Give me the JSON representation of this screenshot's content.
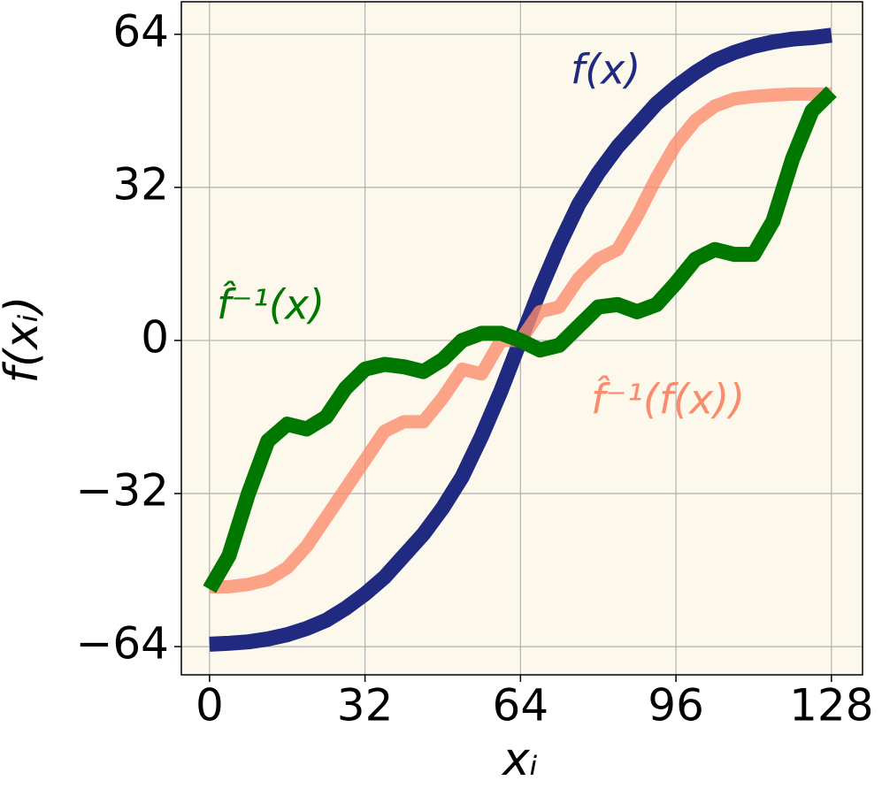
{
  "chart_data": {
    "type": "line",
    "xlabel": "xᵢ",
    "ylabel": "f(xᵢ)",
    "x": [
      0,
      4,
      8,
      12,
      16,
      20,
      24,
      28,
      32,
      36,
      40,
      44,
      48,
      52,
      56,
      60,
      64,
      68,
      72,
      76,
      80,
      84,
      88,
      92,
      96,
      100,
      104,
      108,
      112,
      116,
      120,
      124,
      128
    ],
    "series": [
      {
        "name": "f(x)",
        "color": "#1f2a80",
        "values": [
          -63.5,
          -63.3,
          -63,
          -62.4,
          -61.5,
          -60.2,
          -58.5,
          -56,
          -53,
          -49.5,
          -45,
          -40.5,
          -35,
          -28.5,
          -20,
          -10.5,
          0,
          10.5,
          20,
          28.5,
          35,
          40.5,
          45,
          49.5,
          53,
          56,
          58.5,
          60.2,
          61.5,
          62.4,
          63,
          63.3,
          63.8
        ]
      },
      {
        "name": "f̂⁻¹(f(x))",
        "color": "#fa8c6e",
        "values": [
          -51.5,
          -51.5,
          -51,
          -50,
          -47.5,
          -43,
          -37,
          -31,
          -25,
          -19,
          -17,
          -17,
          -12,
          -6,
          -7,
          0,
          0,
          6,
          7,
          13,
          17,
          19,
          26,
          34,
          41,
          46,
          49,
          50.5,
          51,
          51.3,
          51.5,
          51.5,
          51.5
        ]
      },
      {
        "name": "f̂⁻¹(x)",
        "color": "#007800",
        "values": [
          -52,
          -45,
          -32,
          -21,
          -17.5,
          -18.5,
          -16,
          -10,
          -6,
          -5,
          -5.5,
          -6.5,
          -4,
          0,
          1.5,
          1.5,
          0,
          -2,
          -1,
          3,
          7,
          7.5,
          6,
          7.5,
          12,
          17,
          19,
          18,
          18,
          25,
          38,
          48,
          52
        ]
      }
    ],
    "xlim": [
      -5.8,
      134.4
    ],
    "ylim": [
      -69.9,
      70.8
    ],
    "xticks": [
      0,
      32,
      64,
      96,
      128
    ],
    "yticks": [
      {
        "value": -64,
        "label": "−64"
      },
      {
        "value": -32,
        "label": "−32"
      },
      0,
      32,
      64
    ],
    "grid": true,
    "background": "#fdf8ec"
  }
}
